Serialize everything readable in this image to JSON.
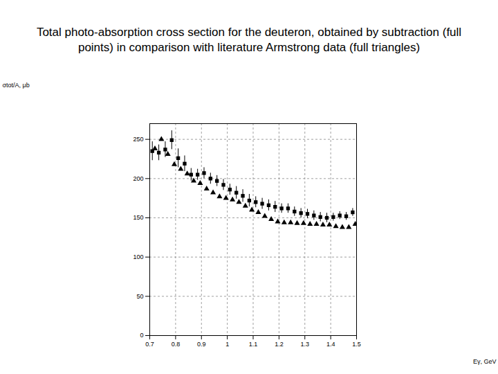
{
  "chart_data": {
    "type": "scatter",
    "title": "Total photo-absorption cross section for the deuteron, obtained by subtraction (full points) in comparison with literature Armstrong data (full triangles)",
    "x_label": "Eγ, GeV",
    "y_label": "σtot/A, μb",
    "xlim": [
      0.7,
      1.5
    ],
    "xticks": [
      0.7,
      0.8,
      0.9,
      1,
      1.1,
      1.2,
      1.3,
      1.4,
      1.5
    ],
    "ylim": [
      0,
      270
    ],
    "yticks": [
      0,
      50,
      100,
      150,
      200,
      250
    ],
    "grid": true,
    "series": [
      {
        "name": "full points",
        "color": "#000000",
        "marker": "square",
        "x": [
          0.71,
          0.735,
          0.76,
          0.785,
          0.81,
          0.835,
          0.86,
          0.885,
          0.91,
          0.935,
          0.96,
          0.985,
          1.01,
          1.035,
          1.06,
          1.085,
          1.11,
          1.135,
          1.16,
          1.185,
          1.21,
          1.235,
          1.26,
          1.285,
          1.31,
          1.335,
          1.36,
          1.385,
          1.41,
          1.435,
          1.46,
          1.485
        ],
        "values": [
          235,
          233,
          237,
          249,
          226,
          219,
          205,
          205,
          207,
          200,
          197,
          192,
          186,
          182,
          178,
          172,
          170,
          168,
          166,
          164,
          162,
          162,
          158,
          156,
          155,
          153,
          151,
          150,
          151,
          153,
          152,
          157
        ],
        "errors": [
          12,
          10,
          10,
          12,
          12,
          10,
          8,
          7,
          7,
          7,
          7,
          7,
          7,
          8,
          8,
          8,
          7,
          7,
          7,
          7,
          6,
          6,
          6,
          6,
          6,
          6,
          6,
          6,
          5,
          5,
          5,
          5
        ]
      },
      {
        "name": "full triangles",
        "color": "#000000",
        "marker": "triangle",
        "x": [
          0.72,
          0.745,
          0.77,
          0.795,
          0.82,
          0.845,
          0.87,
          0.895,
          0.92,
          0.945,
          0.97,
          0.995,
          1.02,
          1.045,
          1.07,
          1.095,
          1.12,
          1.145,
          1.17,
          1.195,
          1.22,
          1.245,
          1.27,
          1.295,
          1.32,
          1.345,
          1.37,
          1.395,
          1.42,
          1.445,
          1.47,
          1.495
        ],
        "values": [
          238,
          250,
          231,
          218,
          212,
          206,
          197,
          194,
          187,
          182,
          177,
          175,
          173,
          170,
          165,
          160,
          157,
          152,
          148,
          145,
          144,
          144,
          143,
          143,
          142,
          142,
          141,
          141,
          139,
          138,
          138,
          142
        ]
      }
    ]
  }
}
